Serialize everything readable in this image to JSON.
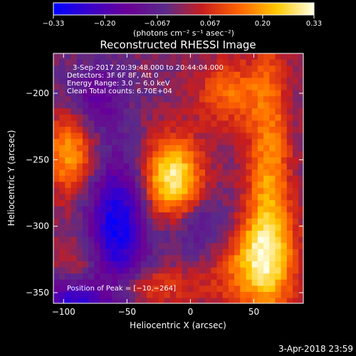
{
  "colorbar": {
    "ticks": [
      -0.33,
      -0.2,
      -0.067,
      0.067,
      0.2,
      0.33
    ],
    "tick_labels": [
      "−0.33",
      "−0.20",
      "−0.067",
      "0.067",
      "0.20",
      "0.33"
    ],
    "units_text": "(photons cm⁻² s⁻¹ asec⁻²)",
    "colors": [
      "#0000ff",
      "#3c00c8",
      "#6a0096",
      "#5a2a8a",
      "#c81e1e",
      "#ff6400",
      "#ffc800",
      "#ffffe6"
    ]
  },
  "footer": {
    "date": "3-Apr-2018 23:59"
  },
  "chart_data": {
    "type": "heatmap",
    "title": "Reconstructed RHESSI Image",
    "xlabel": "Heliocentric X (arcsec)",
    "ylabel": "Heliocentric Y (arcsec)",
    "xlim": [
      -108,
      89
    ],
    "ylim": [
      -358,
      -170
    ],
    "xticks": [
      -100,
      -50,
      0,
      50
    ],
    "xtick_labels": [
      "−100",
      "−50",
      "0",
      "50"
    ],
    "yticks": [
      -200,
      -250,
      -300,
      -350
    ],
    "ytick_labels": [
      "−200",
      "−250",
      "−300",
      "−350"
    ],
    "zlim": [
      -0.33,
      0.33
    ],
    "annotations": [
      "3-Sep-2017 20:39:48.000 to 20:44:04.000",
      "Detectors: 3F 6F 8F, Att 0",
      "Energy Range: 3.0 − 6.0 keV",
      "Clean     Total counts: 6.70E+04"
    ],
    "peak_label": "Position of Peak = [−10,−264]",
    "peak": [
      -10,
      -264
    ],
    "features": [
      {
        "x": -14,
        "y": -265,
        "sx": 16,
        "sy": 22,
        "value": 0.33
      },
      {
        "x": -95,
        "y": -245,
        "sx": 14,
        "sy": 22,
        "value": 0.22
      },
      {
        "x": 62,
        "y": -262,
        "sx": 12,
        "sy": 70,
        "value": 0.2
      },
      {
        "x": 52,
        "y": -325,
        "sx": 22,
        "sy": 26,
        "value": 0.24
      },
      {
        "x": 30,
        "y": -200,
        "sx": 18,
        "sy": 18,
        "value": 0.16
      },
      {
        "x": -30,
        "y": -345,
        "sx": 28,
        "sy": 10,
        "value": 0.12
      },
      {
        "x": -88,
        "y": -330,
        "sx": 14,
        "sy": 18,
        "value": 0.08
      },
      {
        "x": -58,
        "y": -300,
        "sx": 16,
        "sy": 34,
        "value": -0.3
      },
      {
        "x": -75,
        "y": -205,
        "sx": 16,
        "sy": 18,
        "value": -0.14
      },
      {
        "x": -90,
        "y": -355,
        "sx": 18,
        "sy": 12,
        "value": -0.26
      },
      {
        "x": 10,
        "y": -300,
        "sx": 22,
        "sy": 16,
        "value": -0.12
      }
    ]
  }
}
